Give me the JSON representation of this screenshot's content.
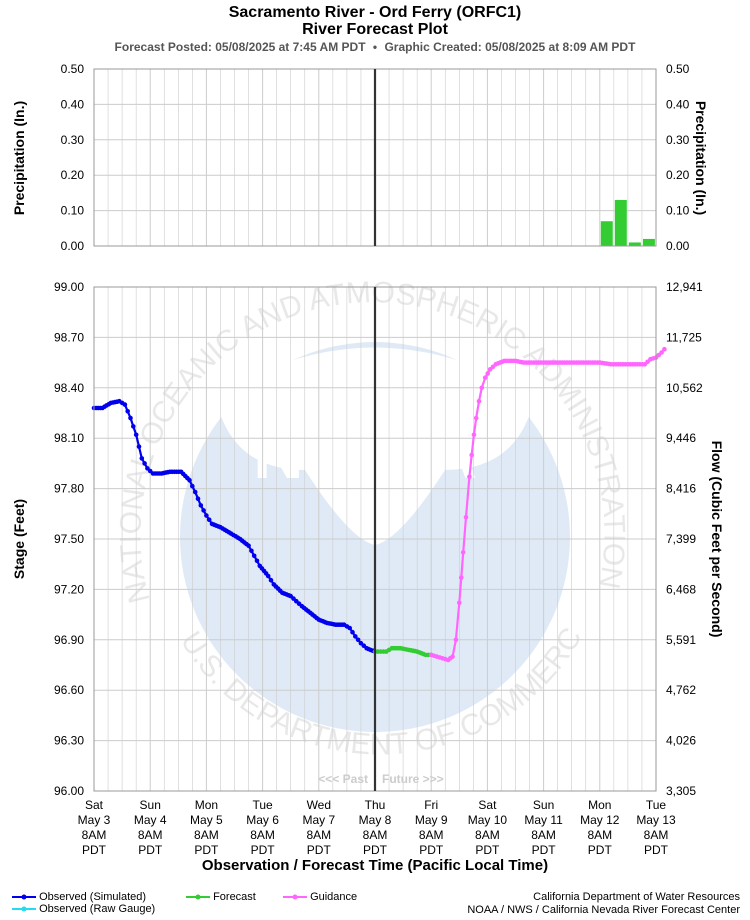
{
  "header": {
    "title_line1": "Sacramento River - Ord Ferry (ORFC1)",
    "title_line2": "River Forecast Plot",
    "posted": "Forecast Posted: 05/08/2025 at 7:45 AM PDT",
    "separator": "•",
    "created": "Graphic Created: 05/08/2025 at 8:09 AM PDT"
  },
  "footer": {
    "legend": {
      "observed_simulated": "Observed (Simulated)",
      "observed_raw": "Observed (Raw Gauge)",
      "forecast": "Forecast",
      "guidance": "Guidance"
    },
    "credit1": "California Department of Water Resources",
    "credit2": "NOAA / NWS / California Nevada River Forecast Center"
  },
  "watermark": {
    "logo_text": "NOAA",
    "ring_top": "NATIONAL OCEANIC AND ATMOSPHERIC ADMINISTRATION",
    "ring_bottom": "U.S. DEPARTMENT OF COMMERCE"
  },
  "colors": {
    "observed": "#0000ee",
    "observed_raw": "#22ddee",
    "forecast": "#33cc33",
    "guidance": "#ff66ff",
    "precip_bar": "#33cc33",
    "grid": "#cccccc",
    "now_line": "#333333"
  },
  "chart_data": [
    {
      "type": "bar",
      "panel": "precipitation",
      "ylabel": "Precipitation (In.)",
      "ylabel_right": "Precipitation (In.)",
      "ylim": [
        0,
        0.5
      ],
      "yticks": [
        "0.00",
        "0.10",
        "0.20",
        "0.30",
        "0.40",
        "0.50"
      ],
      "x_units": "days since Sat May 3 8AM PDT",
      "grid": true,
      "bars": [
        {
          "x": 9.25,
          "value": 0.07
        },
        {
          "x": 9.5,
          "value": 0.13
        },
        {
          "x": 9.75,
          "value": 0.01
        },
        {
          "x": 10.0,
          "value": 0.02
        }
      ]
    },
    {
      "type": "line",
      "panel": "stage",
      "xlabel": "Observation / Forecast Time (Pacific Local Time)",
      "ylabel": "Stage (Feet)",
      "ylabel_right": "Flow (Cubic Feet per Second)",
      "ylim": [
        96.0,
        99.0
      ],
      "yticks": [
        "96.00",
        "96.30",
        "96.60",
        "96.90",
        "97.20",
        "97.50",
        "97.80",
        "98.10",
        "98.40",
        "98.70",
        "99.00"
      ],
      "yticks_right": [
        "3,305",
        "4,026",
        "4,762",
        "5,591",
        "6,468",
        "7,399",
        "8,416",
        "9,446",
        "10,562",
        "11,725",
        "12,941"
      ],
      "x_ticks": [
        {
          "day": "Sat",
          "date": "May 3",
          "time": "8AM",
          "tz": "PDT"
        },
        {
          "day": "Sun",
          "date": "May 4",
          "time": "8AM",
          "tz": "PDT"
        },
        {
          "day": "Mon",
          "date": "May 5",
          "time": "8AM",
          "tz": "PDT"
        },
        {
          "day": "Tue",
          "date": "May 6",
          "time": "8AM",
          "tz": "PDT"
        },
        {
          "day": "Wed",
          "date": "May 7",
          "time": "8AM",
          "tz": "PDT"
        },
        {
          "day": "Thu",
          "date": "May 8",
          "time": "8AM",
          "tz": "PDT"
        },
        {
          "day": "Fri",
          "date": "May 9",
          "time": "8AM",
          "tz": "PDT"
        },
        {
          "day": "Sat",
          "date": "May 10",
          "time": "8AM",
          "tz": "PDT"
        },
        {
          "day": "Sun",
          "date": "May 11",
          "time": "8AM",
          "tz": "PDT"
        },
        {
          "day": "Mon",
          "date": "May 12",
          "time": "8AM",
          "tz": "PDT"
        },
        {
          "day": "Tue",
          "date": "May 13",
          "time": "8AM",
          "tz": "PDT"
        }
      ],
      "now_x": 5.0,
      "past_label": "<<< Past",
      "future_label": "Future >>>",
      "series": [
        {
          "name": "Observed (Simulated)",
          "points": [
            [
              0.0,
              98.28
            ],
            [
              0.15,
              98.28
            ],
            [
              0.3,
              98.31
            ],
            [
              0.45,
              98.32
            ],
            [
              0.55,
              98.3
            ],
            [
              0.65,
              98.22
            ],
            [
              0.75,
              98.12
            ],
            [
              0.85,
              97.98
            ],
            [
              0.95,
              97.92
            ],
            [
              1.05,
              97.89
            ],
            [
              1.2,
              97.89
            ],
            [
              1.35,
              97.9
            ],
            [
              1.55,
              97.9
            ],
            [
              1.7,
              97.85
            ],
            [
              1.8,
              97.78
            ],
            [
              1.9,
              97.7
            ],
            [
              2.0,
              97.64
            ],
            [
              2.1,
              97.59
            ],
            [
              2.25,
              97.57
            ],
            [
              2.4,
              97.54
            ],
            [
              2.6,
              97.5
            ],
            [
              2.75,
              97.46
            ],
            [
              2.85,
              97.4
            ],
            [
              2.95,
              97.34
            ],
            [
              3.1,
              97.28
            ],
            [
              3.2,
              97.23
            ],
            [
              3.35,
              97.18
            ],
            [
              3.5,
              97.16
            ],
            [
              3.6,
              97.13
            ],
            [
              3.7,
              97.1
            ],
            [
              3.85,
              97.06
            ],
            [
              4.0,
              97.02
            ],
            [
              4.15,
              97.0
            ],
            [
              4.3,
              96.99
            ],
            [
              4.45,
              96.99
            ],
            [
              4.55,
              96.97
            ],
            [
              4.65,
              96.92
            ],
            [
              4.75,
              96.88
            ],
            [
              4.85,
              96.85
            ],
            [
              4.92,
              96.84
            ],
            [
              5.0,
              96.83
            ]
          ]
        },
        {
          "name": "Forecast",
          "points": [
            [
              5.0,
              96.83
            ],
            [
              5.1,
              96.83
            ],
            [
              5.2,
              96.83
            ],
            [
              5.3,
              96.85
            ],
            [
              5.45,
              96.85
            ],
            [
              5.6,
              96.84
            ],
            [
              5.75,
              96.83
            ],
            [
              5.9,
              96.81
            ],
            [
              6.0,
              96.81
            ]
          ]
        },
        {
          "name": "Guidance",
          "points": [
            [
              6.0,
              96.81
            ],
            [
              6.1,
              96.8
            ],
            [
              6.2,
              96.79
            ],
            [
              6.3,
              96.78
            ],
            [
              6.38,
              96.8
            ],
            [
              6.44,
              96.9
            ],
            [
              6.5,
              97.12
            ],
            [
              6.57,
              97.42
            ],
            [
              6.62,
              97.63
            ],
            [
              6.68,
              97.87
            ],
            [
              6.72,
              98.0
            ],
            [
              6.76,
              98.12
            ],
            [
              6.8,
              98.22
            ],
            [
              6.85,
              98.32
            ],
            [
              6.9,
              98.4
            ],
            [
              6.96,
              98.46
            ],
            [
              7.05,
              98.51
            ],
            [
              7.15,
              98.54
            ],
            [
              7.3,
              98.56
            ],
            [
              7.5,
              98.56
            ],
            [
              7.65,
              98.55
            ],
            [
              8.0,
              98.55
            ],
            [
              8.5,
              98.55
            ],
            [
              9.0,
              98.55
            ],
            [
              9.2,
              98.54
            ],
            [
              9.5,
              98.54
            ],
            [
              9.8,
              98.54
            ],
            [
              9.9,
              98.57
            ],
            [
              10.0,
              98.58
            ],
            [
              10.1,
              98.61
            ],
            [
              10.15,
              98.63
            ]
          ]
        }
      ]
    }
  ]
}
